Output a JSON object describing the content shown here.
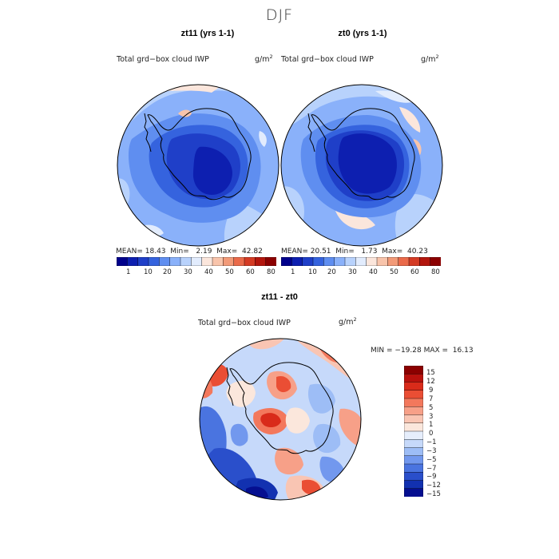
{
  "page_title": "DJF",
  "colors": {
    "seq_scale": [
      "#00008b",
      "#0d1fb0",
      "#1f3fc8",
      "#3563de",
      "#5f8ef0",
      "#8ab1fa",
      "#b8d2fc",
      "#e2ecfd",
      "#fbe6dc",
      "#f8c4ab",
      "#f29a78",
      "#ea6a4a",
      "#d43b24",
      "#b3160d",
      "#8b0000"
    ],
    "diff_scale": [
      "#8b0000",
      "#b8110d",
      "#d92b1a",
      "#ea4e34",
      "#f3785c",
      "#f7a088",
      "#f9c5b3",
      "#fbe7dc",
      "#e6eefc",
      "#c6d9fa",
      "#9dbdf6",
      "#7298ee",
      "#4a74e0",
      "#2a4fcb",
      "#1231b0",
      "#050f90"
    ],
    "coast": "#000000"
  },
  "chart_data": [
    {
      "type": "heatmap",
      "title": "zt11 (yrs 1-1)",
      "variable": "Total grd−box cloud IWP",
      "units_base": "g/m",
      "units_exp": "2",
      "stats": {
        "mean_label": "MEAN=",
        "mean": "18.43",
        "min_label": "Min=",
        "min": "2.19",
        "max_label": "Max=",
        "max": "42.82"
      },
      "colorbar_ticks": [
        "1",
        "10",
        "20",
        "30",
        "40",
        "50",
        "60",
        "80"
      ],
      "projection": "south polar stereographic",
      "region": "Antarctica"
    },
    {
      "type": "heatmap",
      "title": "zt0 (yrs 1-1)",
      "variable": "Total grd−box cloud IWP",
      "units_base": "g/m",
      "units_exp": "2",
      "stats": {
        "mean_label": "MEAN=",
        "mean": "20.51",
        "min_label": "Min=",
        "min": "1.73",
        "max_label": "Max=",
        "max": "40.23"
      },
      "colorbar_ticks": [
        "1",
        "10",
        "20",
        "30",
        "40",
        "50",
        "60",
        "80"
      ],
      "projection": "south polar stereographic",
      "region": "Antarctica"
    },
    {
      "type": "heatmap",
      "title": "zt11 - zt0",
      "variable": "Total grd−box cloud IWP",
      "units_base": "g/m",
      "units_exp": "2",
      "stats_text": "MIN = −19.28 MAX =  16.13",
      "colorbar_ticks": [
        "15",
        "12",
        "9",
        "7",
        "5",
        "3",
        "1",
        "0",
        "−1",
        "−3",
        "−5",
        "−7",
        "−9",
        "−12",
        "−15"
      ],
      "projection": "south polar stereographic",
      "region": "Antarctica"
    }
  ]
}
